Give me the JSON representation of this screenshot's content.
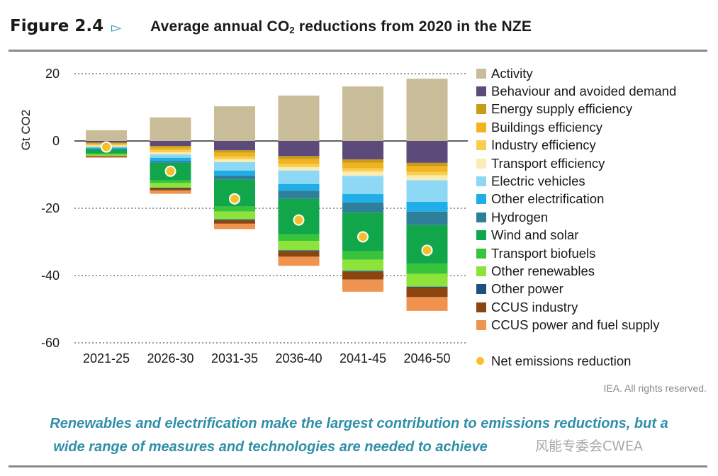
{
  "header": {
    "figure_label": "Figure 2.4",
    "title_prefix": "Average annual CO",
    "title_sub": "2",
    "title_suffix": " reductions from 2020 in the NZE"
  },
  "chart_data": {
    "type": "bar",
    "stacked": true,
    "ylabel": "Gt CO2",
    "ylim": [
      -60,
      20
    ],
    "yticks": [
      20,
      0,
      -20,
      -40,
      -60
    ],
    "grid": "dotted",
    "legend_position": "right",
    "categories": [
      "2021-25",
      "2026-30",
      "2031-35",
      "2036-40",
      "2041-45",
      "2046-50"
    ],
    "series": [
      {
        "name": "Activity",
        "color": "#c8bd98",
        "values": [
          3.2,
          7.0,
          10.3,
          13.5,
          16.2,
          18.5
        ]
      },
      {
        "name": "Behaviour and avoided demand",
        "color": "#5b4a7a",
        "values": [
          -0.5,
          -1.5,
          -2.8,
          -4.5,
          -5.5,
          -6.5
        ]
      },
      {
        "name": "Energy supply efficiency",
        "color": "#c99c17",
        "values": [
          -0.3,
          -0.5,
          -0.7,
          -0.9,
          -1.0,
          -1.0
        ]
      },
      {
        "name": "Buildings efficiency",
        "color": "#f2b320",
        "values": [
          -0.3,
          -0.8,
          -1.2,
          -1.5,
          -1.6,
          -1.7
        ]
      },
      {
        "name": "Industry efficiency",
        "color": "#f7cf4f",
        "values": [
          -0.3,
          -0.6,
          -0.8,
          -0.9,
          -1.0,
          -1.0
        ]
      },
      {
        "name": "Transport efficiency",
        "color": "#faecb5",
        "values": [
          -0.3,
          -0.6,
          -0.8,
          -1.0,
          -1.3,
          -1.5
        ]
      },
      {
        "name": "Electric vehicles",
        "color": "#8cd8f5",
        "values": [
          -0.3,
          -1.0,
          -2.5,
          -4.0,
          -5.4,
          -6.4
        ]
      },
      {
        "name": "Other electrification",
        "color": "#1faee8",
        "values": [
          -0.3,
          -1.0,
          -1.5,
          -2.0,
          -2.5,
          -2.9
        ]
      },
      {
        "name": "Hydrogen",
        "color": "#2f7f9a",
        "values": [
          -0.2,
          -0.5,
          -1.2,
          -2.4,
          -3.0,
          -4.0
        ]
      },
      {
        "name": "Wind and solar",
        "color": "#12a64a",
        "values": [
          -1.2,
          -5.2,
          -8.0,
          -10.5,
          -11.5,
          -11.5
        ]
      },
      {
        "name": "Transport biofuels",
        "color": "#38c43a",
        "values": [
          -0.3,
          -0.8,
          -1.5,
          -2.0,
          -2.5,
          -3.0
        ]
      },
      {
        "name": "Other renewables",
        "color": "#8ee33a",
        "values": [
          -0.4,
          -1.4,
          -2.3,
          -2.8,
          -3.3,
          -3.8
        ]
      },
      {
        "name": "Other power",
        "color": "#1f4e80",
        "values": [
          -0.1,
          -0.2,
          -0.3,
          -0.3,
          -0.3,
          -0.3
        ]
      },
      {
        "name": "CCUS industry",
        "color": "#8b4510",
        "values": [
          -0.2,
          -0.6,
          -1.0,
          -1.6,
          -2.3,
          -2.8
        ]
      },
      {
        "name": "CCUS power and fuel supply",
        "color": "#f0934f",
        "values": [
          -0.3,
          -1.0,
          -1.6,
          -2.7,
          -3.6,
          -4.1
        ]
      }
    ],
    "net_emissions_reduction": {
      "name": "Net emissions reduction",
      "color": "#f5c02b",
      "values": [
        -1.8,
        -9.0,
        -17.2,
        -23.5,
        -28.5,
        -32.5
      ]
    }
  },
  "legend_net_label": "Net emissions reduction",
  "footer": {
    "credit": "IEA. All rights reserved.",
    "caption_line1": "Renewables and electrification make the largest contribution to emissions reductions, but a",
    "caption_line2": "wide range of measures and technologies are needed to achieve",
    "watermark": "风能专委会CWEA"
  }
}
